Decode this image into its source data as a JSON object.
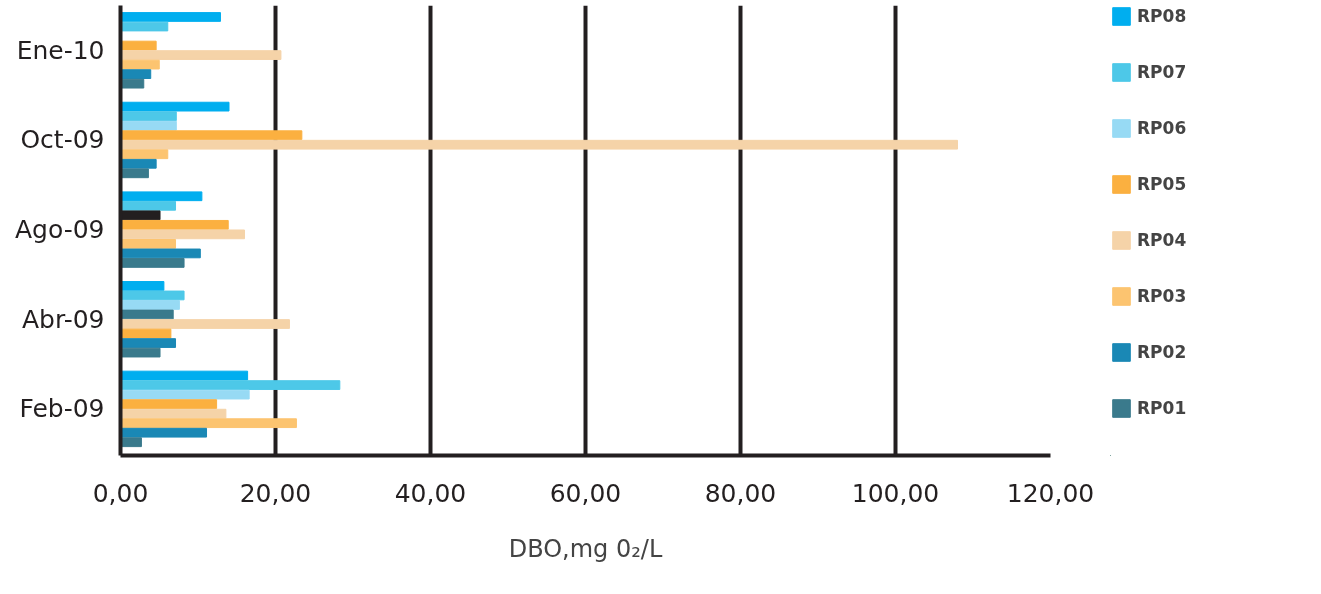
{
  "chart_data": {
    "type": "bar",
    "orientation": "horizontal",
    "xlabel": "DBO,mg 0₂/L",
    "categories": [
      "Ene-10",
      "Oct-09",
      "Ago-09",
      "Abr-09",
      "Feb-09"
    ],
    "series": [
      {
        "name": "RP08",
        "color": "#00aeef",
        "values": [
          12.9,
          14.0,
          10.5,
          5.6,
          16.4
        ]
      },
      {
        "name": "RP07",
        "color": "#4dc8e8",
        "values": [
          6.1,
          7.2,
          7.1,
          8.2,
          28.3
        ]
      },
      {
        "name": "RP06",
        "color": "#97daf4",
        "colors": [
          "#97daf4",
          "#97daf4",
          "#231f20",
          "#97daf4",
          "#97daf4"
        ],
        "values": [
          null,
          7.2,
          5.1,
          7.6,
          16.6
        ]
      },
      {
        "name": "RP05",
        "color": "#fbb040",
        "colors": [
          "#fbb040",
          "#fbb040",
          "#fbb040",
          "#3a7a8c",
          "#fbb040"
        ],
        "values": [
          4.6,
          23.4,
          13.9,
          6.8,
          12.4
        ]
      },
      {
        "name": "RP04",
        "color": "#f5d3a8",
        "values": [
          20.7,
          108,
          16.0,
          21.8,
          13.6
        ]
      },
      {
        "name": "RP03",
        "color": "#fcc470",
        "colors": [
          "#fcc470",
          "#fcc470",
          "#fcc470",
          "#fbb040",
          "#fcc470"
        ],
        "values": [
          5.0,
          6.1,
          7.1,
          6.5,
          22.7
        ]
      },
      {
        "name": "RP02",
        "color": "#1a88b5",
        "values": [
          3.9,
          4.6,
          10.3,
          7.1,
          11.1
        ]
      },
      {
        "name": "RP01",
        "color": "#3a7a8c",
        "values": [
          3.0,
          3.6,
          8.2,
          5.1,
          2.7
        ]
      }
    ],
    "xlim": [
      0,
      120
    ],
    "xticks": [
      {
        "value": 0,
        "label": "0,00"
      },
      {
        "value": 20,
        "label": "20,00"
      },
      {
        "value": 40,
        "label": "40,00"
      },
      {
        "value": 60,
        "label": "60,00"
      },
      {
        "value": 80,
        "label": "80,00"
      },
      {
        "value": 100,
        "label": "100,00"
      },
      {
        "value": 120,
        "label": "120,00"
      }
    ],
    "grid": "x",
    "legend": "right"
  }
}
